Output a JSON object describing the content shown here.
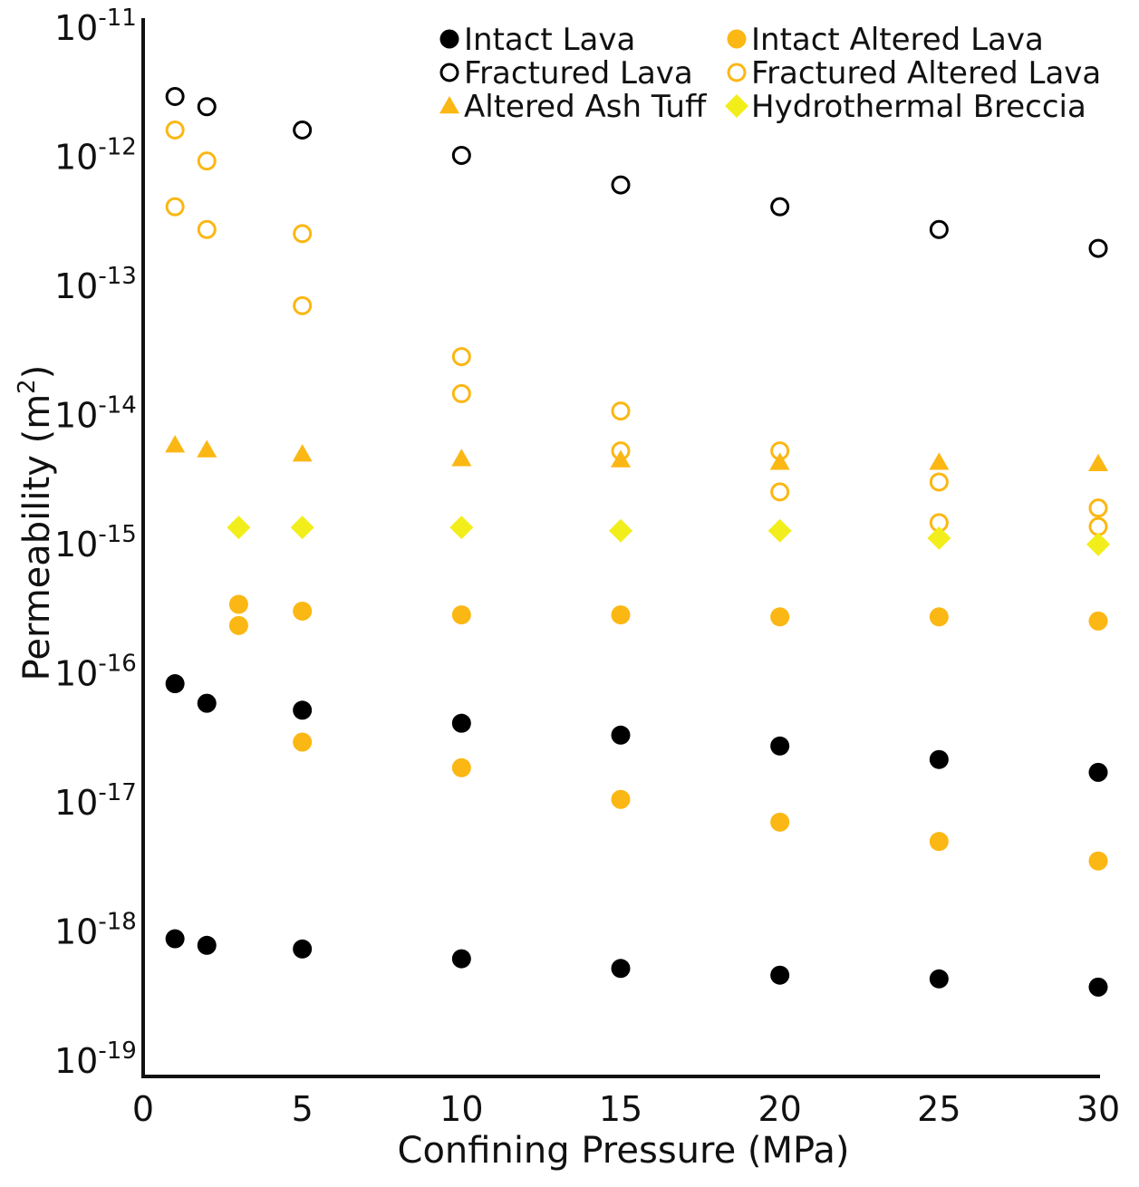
{
  "chart_data": {
    "type": "scatter",
    "title": "",
    "xlabel": "Confining Pressure (MPa)",
    "ylabel": {
      "base": "Permeability (m",
      "exp": "2",
      "close": ")"
    },
    "xlim": [
      0,
      30
    ],
    "ylim_log10": [
      -19,
      -11
    ],
    "y_scale": "log",
    "x_ticks": [
      0,
      5,
      10,
      15,
      20,
      25,
      30
    ],
    "y_ticks": [
      {
        "base": "10",
        "exp": "-11"
      },
      {
        "base": "10",
        "exp": "-12"
      },
      {
        "base": "10",
        "exp": "-13"
      },
      {
        "base": "10",
        "exp": "-14"
      },
      {
        "base": "10",
        "exp": "-15"
      },
      {
        "base": "10",
        "exp": "-16"
      },
      {
        "base": "10",
        "exp": "-17"
      },
      {
        "base": "10",
        "exp": "-18"
      },
      {
        "base": "10",
        "exp": "-19"
      }
    ],
    "y_tick_values_log10": [
      -11,
      -12,
      -13,
      -14,
      -15,
      -16,
      -17,
      -18,
      -19
    ],
    "legend_position": "top-right",
    "colors": {
      "black": "#000000",
      "orange": "#fbb713",
      "yellow": "#f2ee1c"
    },
    "series": [
      {
        "name": "Intact Lava",
        "marker": "filled-circle",
        "color": "#000000",
        "points": [
          [
            1,
            8.5e-17
          ],
          [
            2,
            6e-17
          ],
          [
            5,
            5.3e-17
          ],
          [
            10,
            4.2e-17
          ],
          [
            15,
            3.4e-17
          ],
          [
            20,
            2.8e-17
          ],
          [
            25,
            2.2e-17
          ],
          [
            30,
            1.75e-17
          ],
          [
            1,
            9e-19
          ],
          [
            2,
            8e-19
          ],
          [
            5,
            7.5e-19
          ],
          [
            10,
            6.3e-19
          ],
          [
            15,
            5.3e-19
          ],
          [
            20,
            4.7e-19
          ],
          [
            25,
            4.4e-19
          ],
          [
            30,
            3.8e-19
          ]
        ]
      },
      {
        "name": "Intact Altered Lava",
        "marker": "filled-circle",
        "color": "#fbb713",
        "points": [
          [
            3,
            3.5e-16
          ],
          [
            3,
            2.4e-16
          ],
          [
            5,
            3.1e-16
          ],
          [
            10,
            2.9e-16
          ],
          [
            15,
            2.9e-16
          ],
          [
            20,
            2.8e-16
          ],
          [
            25,
            2.8e-16
          ],
          [
            30,
            2.6e-16
          ],
          [
            5,
            3e-17
          ],
          [
            10,
            1.9e-17
          ],
          [
            15,
            1.08e-17
          ],
          [
            20,
            7.2e-18
          ],
          [
            25,
            5.1e-18
          ],
          [
            30,
            3.6e-18
          ]
        ]
      },
      {
        "name": "Fractured Lava",
        "marker": "open-circle",
        "color": "#000000",
        "points": [
          [
            1,
            3e-12
          ],
          [
            2,
            2.5e-12
          ],
          [
            5,
            1.65e-12
          ],
          [
            10,
            1.05e-12
          ],
          [
            15,
            6.2e-13
          ],
          [
            20,
            4.2e-13
          ],
          [
            25,
            2.8e-13
          ],
          [
            30,
            2e-13
          ]
        ]
      },
      {
        "name": "Fractured Altered Lava",
        "marker": "open-circle",
        "color": "#fbb713",
        "points": [
          [
            1,
            1.65e-12
          ],
          [
            1,
            4.2e-13
          ],
          [
            2,
            9.5e-13
          ],
          [
            2,
            2.8e-13
          ],
          [
            5,
            2.6e-13
          ],
          [
            5,
            7.2e-14
          ],
          [
            10,
            2.9e-14
          ],
          [
            10,
            1.5e-14
          ],
          [
            15,
            1.1e-14
          ],
          [
            15,
            5.4e-15
          ],
          [
            20,
            5.4e-15
          ],
          [
            20,
            2.6e-15
          ],
          [
            25,
            3.1e-15
          ],
          [
            25,
            1.5e-15
          ],
          [
            30,
            1.95e-15
          ],
          [
            30,
            1.4e-15
          ]
        ]
      },
      {
        "name": "Altered Ash Tuff",
        "marker": "triangle",
        "color": "#fbb713",
        "points": [
          [
            1,
            6e-15
          ],
          [
            2,
            5.5e-15
          ],
          [
            5,
            5.1e-15
          ],
          [
            10,
            4.7e-15
          ],
          [
            15,
            4.6e-15
          ],
          [
            20,
            4.4e-15
          ],
          [
            25,
            4.4e-15
          ],
          [
            30,
            4.3e-15
          ]
        ]
      },
      {
        "name": "Hydrothermal Breccia",
        "marker": "diamond",
        "color": "#f2ee1c",
        "points": [
          [
            3,
            1.38e-15
          ],
          [
            5,
            1.38e-15
          ],
          [
            10,
            1.38e-15
          ],
          [
            15,
            1.3e-15
          ],
          [
            20,
            1.3e-15
          ],
          [
            25,
            1.14e-15
          ],
          [
            30,
            1.02e-15
          ]
        ]
      }
    ]
  }
}
